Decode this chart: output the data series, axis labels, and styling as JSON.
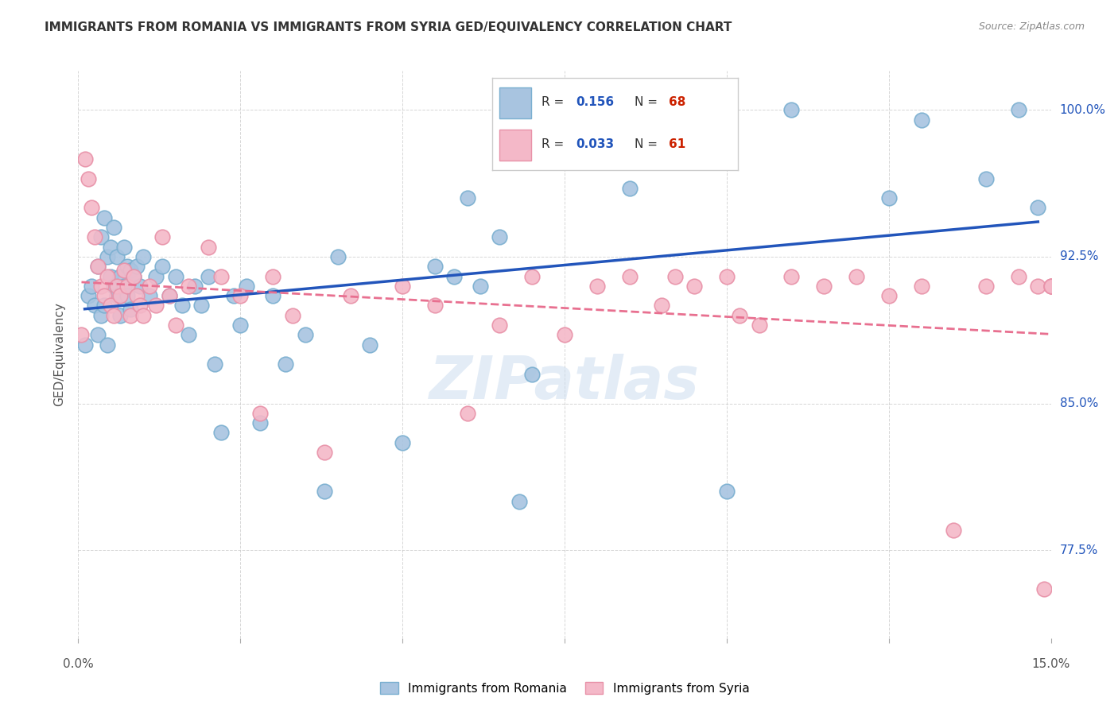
{
  "title": "IMMIGRANTS FROM ROMANIA VS IMMIGRANTS FROM SYRIA GED/EQUIVALENCY CORRELATION CHART",
  "source": "Source: ZipAtlas.com",
  "ylabel": "GED/Equivalency",
  "xlim": [
    0.0,
    15.0
  ],
  "ylim": [
    73.0,
    102.0
  ],
  "watermark": "ZIPatlas",
  "legend_romania": "Immigrants from Romania",
  "legend_syria": "Immigrants from Syria",
  "R_romania": "0.156",
  "N_romania": "68",
  "R_syria": "0.033",
  "N_syria": "61",
  "romania_color": "#a8c4e0",
  "syria_color": "#f4b8c8",
  "romania_edge": "#7aafd0",
  "syria_edge": "#e891a8",
  "romania_line_color": "#2255bb",
  "syria_line_color": "#e87090",
  "ytick_positions": [
    77.5,
    85.0,
    92.5,
    100.0
  ],
  "ytick_labels": [
    "77.5%",
    "85.0%",
    "92.5%",
    "100.0%"
  ],
  "romania_x": [
    0.1,
    0.15,
    0.2,
    0.25,
    0.3,
    0.3,
    0.35,
    0.35,
    0.4,
    0.4,
    0.45,
    0.45,
    0.5,
    0.5,
    0.55,
    0.55,
    0.6,
    0.6,
    0.65,
    0.65,
    0.7,
    0.7,
    0.75,
    0.75,
    0.8,
    0.8,
    0.85,
    0.9,
    0.95,
    1.0,
    1.1,
    1.2,
    1.3,
    1.4,
    1.5,
    1.6,
    1.7,
    1.8,
    1.9,
    2.0,
    2.1,
    2.2,
    2.4,
    2.5,
    2.6,
    2.8,
    3.0,
    3.2,
    3.5,
    3.8,
    4.0,
    4.5,
    5.0,
    5.5,
    5.8,
    6.0,
    6.2,
    6.5,
    6.8,
    7.0,
    8.5,
    10.0,
    11.0,
    12.5,
    13.0,
    14.0,
    14.5,
    14.8
  ],
  "romania_y": [
    88.0,
    90.5,
    91.0,
    90.0,
    92.0,
    88.5,
    93.5,
    89.5,
    94.5,
    90.0,
    92.5,
    88.0,
    93.0,
    91.5,
    94.0,
    91.0,
    92.5,
    90.5,
    91.5,
    89.5,
    93.0,
    91.0,
    92.0,
    90.5,
    91.8,
    89.8,
    91.5,
    92.0,
    91.0,
    92.5,
    90.5,
    91.5,
    92.0,
    90.5,
    91.5,
    90.0,
    88.5,
    91.0,
    90.0,
    91.5,
    87.0,
    83.5,
    90.5,
    89.0,
    91.0,
    84.0,
    90.5,
    87.0,
    88.5,
    80.5,
    92.5,
    88.0,
    83.0,
    92.0,
    91.5,
    95.5,
    91.0,
    93.5,
    80.0,
    86.5,
    96.0,
    80.5,
    100.0,
    95.5,
    99.5,
    96.5,
    100.0,
    95.0
  ],
  "syria_x": [
    0.05,
    0.1,
    0.15,
    0.2,
    0.25,
    0.3,
    0.35,
    0.4,
    0.45,
    0.5,
    0.55,
    0.6,
    0.65,
    0.7,
    0.75,
    0.8,
    0.85,
    0.9,
    0.95,
    1.0,
    1.1,
    1.2,
    1.3,
    1.4,
    1.5,
    1.7,
    2.0,
    2.2,
    2.5,
    2.8,
    3.0,
    3.3,
    3.8,
    4.2,
    5.0,
    5.5,
    6.0,
    6.5,
    7.0,
    7.5,
    8.0,
    8.5,
    9.0,
    9.2,
    9.5,
    10.0,
    10.2,
    10.5,
    11.0,
    11.5,
    12.0,
    12.5,
    13.0,
    13.5,
    14.0,
    14.5,
    14.8,
    14.9,
    15.0,
    15.0,
    15.0
  ],
  "syria_y": [
    88.5,
    97.5,
    96.5,
    95.0,
    93.5,
    92.0,
    91.0,
    90.5,
    91.5,
    90.0,
    89.5,
    91.0,
    90.5,
    91.8,
    91.0,
    89.5,
    91.5,
    90.5,
    90.0,
    89.5,
    91.0,
    90.0,
    93.5,
    90.5,
    89.0,
    91.0,
    93.0,
    91.5,
    90.5,
    84.5,
    91.5,
    89.5,
    82.5,
    90.5,
    91.0,
    90.0,
    84.5,
    89.0,
    91.5,
    88.5,
    91.0,
    91.5,
    90.0,
    91.5,
    91.0,
    91.5,
    89.5,
    89.0,
    91.5,
    91.0,
    91.5,
    90.5,
    91.0,
    78.5,
    91.0,
    91.5,
    91.0,
    75.5,
    91.0,
    91.0,
    91.0
  ]
}
